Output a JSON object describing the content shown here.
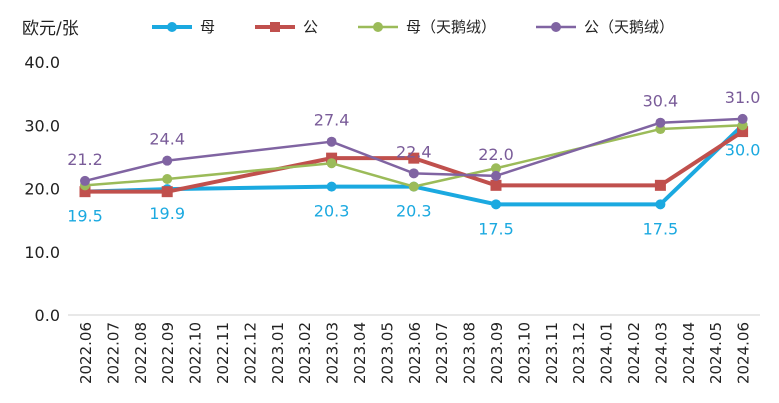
{
  "chart_data": {
    "type": "line",
    "ylabel": "欧元/张",
    "ylim": [
      0,
      40
    ],
    "yticks": [
      "0.0",
      "10.0",
      "20.0",
      "30.0",
      "40.0"
    ],
    "legend_position": "top",
    "grid": false,
    "categories": [
      "2022.06",
      "2022.07",
      "2022.08",
      "2022.09",
      "2022.10",
      "2022.11",
      "2022.12",
      "2023.01",
      "2023.02",
      "2023.03",
      "2023.04",
      "2023.05",
      "2023.06",
      "2023.07",
      "2023.08",
      "2023.09",
      "2023.10",
      "2023.11",
      "2023.12",
      "2024.01",
      "2024.02",
      "2024.03",
      "2024.04",
      "2024.05",
      "2024.06"
    ],
    "series": [
      {
        "name": "母",
        "color": "#1BA9E0",
        "marker": "circle",
        "width": 4,
        "points": [
          [
            "2022.06",
            19.5
          ],
          [
            "2022.09",
            19.9
          ],
          [
            "2023.03",
            20.3
          ],
          [
            "2023.06",
            20.3
          ],
          [
            "2023.09",
            17.5
          ],
          [
            "2024.03",
            17.5
          ],
          [
            "2024.06",
            30.0
          ]
        ]
      },
      {
        "name": "公",
        "color": "#C0504D",
        "marker": "square",
        "width": 4,
        "points": [
          [
            "2022.06",
            19.5
          ],
          [
            "2022.09",
            19.5
          ],
          [
            "2023.03",
            24.8
          ],
          [
            "2023.06",
            24.8
          ],
          [
            "2023.09",
            20.5
          ],
          [
            "2024.03",
            20.5
          ],
          [
            "2024.06",
            29.0
          ]
        ]
      },
      {
        "name": "母（天鹅绒）",
        "color": "#9BBB59",
        "marker": "circle",
        "width": 2.5,
        "points": [
          [
            "2022.06",
            20.5
          ],
          [
            "2022.09",
            21.5
          ],
          [
            "2023.03",
            24.0
          ],
          [
            "2023.06",
            20.3
          ],
          [
            "2023.09",
            23.2
          ],
          [
            "2024.03",
            29.4
          ],
          [
            "2024.06",
            30.0
          ]
        ]
      },
      {
        "name": "公（天鹅绒）",
        "color": "#8064A2",
        "marker": "circle",
        "width": 2.5,
        "points": [
          [
            "2022.06",
            21.2
          ],
          [
            "2022.09",
            24.4
          ],
          [
            "2023.03",
            27.4
          ],
          [
            "2023.06",
            22.4
          ],
          [
            "2023.09",
            22.0
          ],
          [
            "2024.03",
            30.4
          ],
          [
            "2024.06",
            31.0
          ]
        ]
      }
    ],
    "data_labels": [
      {
        "series": "母",
        "x": "2022.06",
        "text": "19.5",
        "color": "#1BA9E0",
        "pos": "below"
      },
      {
        "series": "母",
        "x": "2022.09",
        "text": "19.9",
        "color": "#1BA9E0",
        "pos": "below"
      },
      {
        "series": "母",
        "x": "2023.03",
        "text": "20.3",
        "color": "#1BA9E0",
        "pos": "below"
      },
      {
        "series": "母",
        "x": "2023.06",
        "text": "20.3",
        "color": "#1BA9E0",
        "pos": "below"
      },
      {
        "series": "母",
        "x": "2023.09",
        "text": "17.5",
        "color": "#1BA9E0",
        "pos": "below"
      },
      {
        "series": "母",
        "x": "2024.03",
        "text": "17.5",
        "color": "#1BA9E0",
        "pos": "below"
      },
      {
        "series": "母",
        "x": "2024.06",
        "text": "30.0",
        "color": "#1BA9E0",
        "pos": "below"
      },
      {
        "series": "公（天鹅绒）",
        "x": "2022.06",
        "text": "21.2",
        "color": "#7A5C99",
        "pos": "above"
      },
      {
        "series": "公（天鹅绒）",
        "x": "2022.09",
        "text": "24.4",
        "color": "#7A5C99",
        "pos": "above"
      },
      {
        "series": "公（天鹅绒）",
        "x": "2023.03",
        "text": "27.4",
        "color": "#7A5C99",
        "pos": "above"
      },
      {
        "series": "公（天鹅绒）",
        "x": "2023.06",
        "text": "22.4",
        "color": "#7A5C99",
        "pos": "above"
      },
      {
        "series": "公（天鹅绒）",
        "x": "2023.09",
        "text": "22.0",
        "color": "#7A5C99",
        "pos": "above"
      },
      {
        "series": "公（天鹅绒）",
        "x": "2024.03",
        "text": "30.4",
        "color": "#7A5C99",
        "pos": "above"
      },
      {
        "series": "公（天鹅绒）",
        "x": "2024.06",
        "text": "31.0",
        "color": "#7A5C99",
        "pos": "above"
      }
    ]
  }
}
